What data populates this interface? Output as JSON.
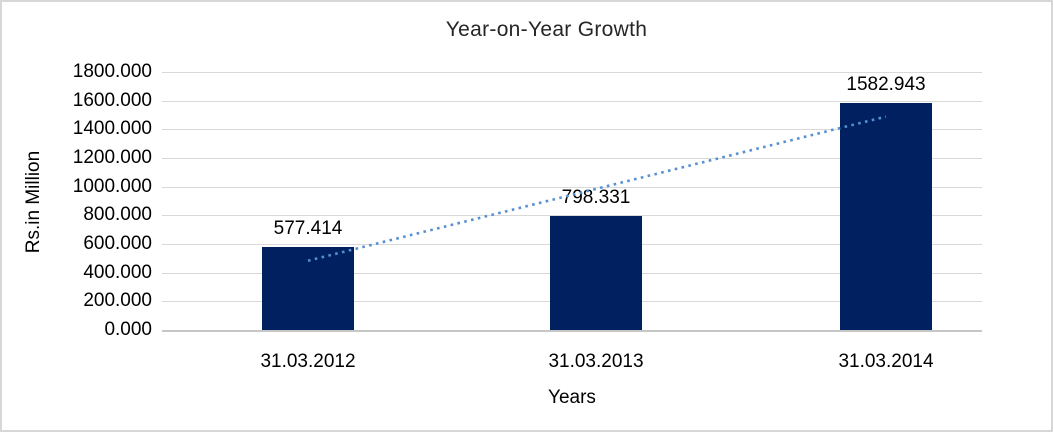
{
  "frame": {
    "background": "#ffffff",
    "border_color": "#d7d7d7"
  },
  "chart_data": {
    "type": "bar",
    "title": "Year-on-Year Growth",
    "xlabel": "Years",
    "ylabel": "Rs.in Million",
    "categories": [
      "31.03.2012",
      "31.03.2013",
      "31.03.2014"
    ],
    "values": [
      577.414,
      798.331,
      1582.943
    ],
    "value_labels": [
      "577.414",
      "798.331",
      "1582.943"
    ],
    "ytick_labels": [
      "1800.000",
      "1600.000",
      "1400.000",
      "1200.000",
      "1000.000",
      "800.000",
      "600.000",
      "400.000",
      "200.000",
      "0.000"
    ],
    "ylim": [
      0,
      1800
    ],
    "ytick_step": 200,
    "grid": "horizontal",
    "legend": "none",
    "bar_color": "#002060",
    "gridline_color": "#d9d9d9",
    "trendline": {
      "fit": "linear",
      "style": "dotted",
      "color": "#5590d2"
    }
  }
}
